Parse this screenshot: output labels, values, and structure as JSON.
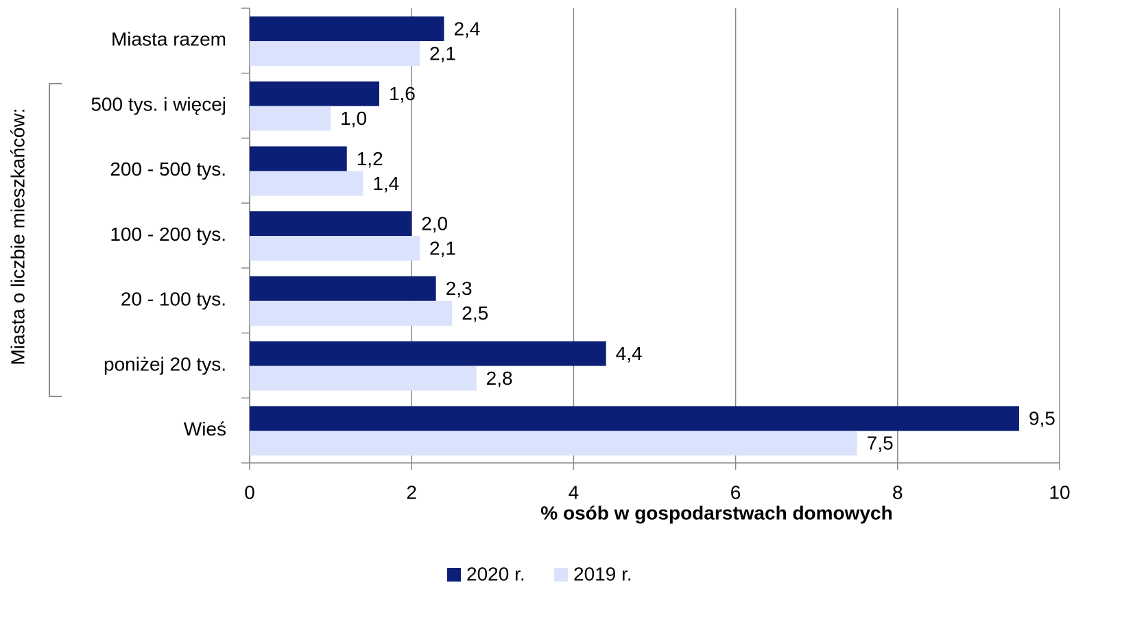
{
  "chart_data": {
    "type": "bar",
    "orientation": "horizontal",
    "x_axis_label": "% osób w gospodarstwach domowych",
    "group_label": "Miasta o liczbie mieszkańców:",
    "categories": [
      "Miasta razem",
      "500 tys. i więcej",
      "200 - 500 tys.",
      "100 - 200 tys.",
      "20 - 100 tys.",
      "poniżej 20 tys.",
      "Wieś"
    ],
    "series": [
      {
        "name": "2020 r.",
        "color": "#0c1f77",
        "values": [
          2.4,
          1.6,
          1.2,
          2.0,
          2.3,
          4.4,
          9.5
        ],
        "value_labels": [
          "2,4",
          "1,6",
          "1,2",
          "2,0",
          "2,3",
          "4,4",
          "9,5"
        ]
      },
      {
        "name": "2019 r.",
        "color": "#dbe2fb",
        "values": [
          2.1,
          1.0,
          1.4,
          2.1,
          2.5,
          2.8,
          7.5
        ],
        "value_labels": [
          "2,1",
          "1,0",
          "1,4",
          "2,1",
          "2,5",
          "2,8",
          "7,5"
        ]
      }
    ],
    "xlim": [
      0,
      10
    ],
    "xticks": [
      0,
      2,
      4,
      6,
      8,
      10
    ],
    "grid": true,
    "legend": "bottom"
  }
}
